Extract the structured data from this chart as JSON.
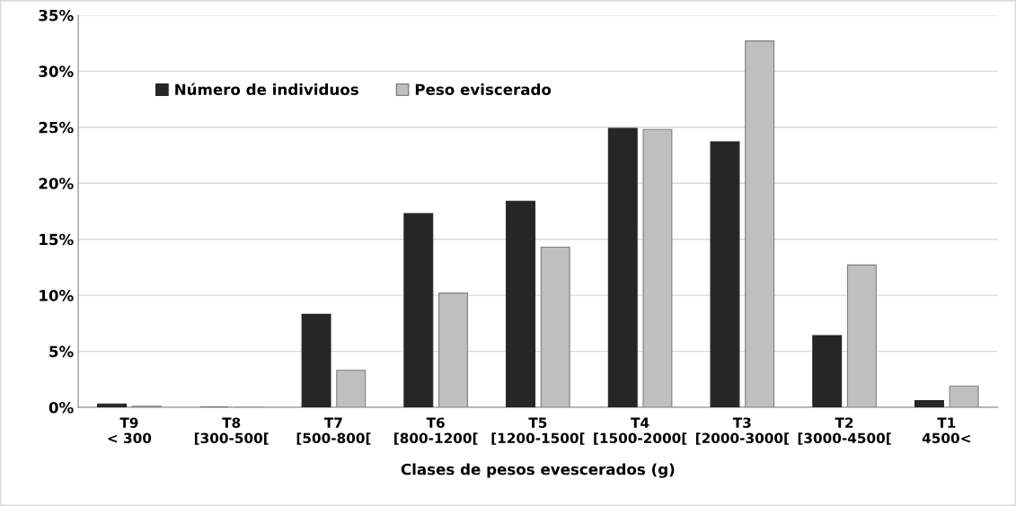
{
  "chart_data": {
    "type": "bar",
    "xlabel": "Clases de pesos evescerados (g)",
    "categories": [
      "T9\n< 300",
      "T8\n[300-500[",
      "T7\n[500-800[",
      "T6\n[800-1200[",
      "T5\n[1200-1500[",
      "T4\n[1500-2000[",
      "T3\n[2000-3000[",
      "T2\n[3000-4500[",
      "T1\n4500<"
    ],
    "series": [
      {
        "name": "Número de individuos",
        "color": "#262626",
        "values": [
          0.3,
          0,
          8.3,
          17.3,
          18.4,
          24.9,
          23.7,
          6.4,
          0.6
        ]
      },
      {
        "name": "Peso eviscerado",
        "color": "#bfbfbf",
        "values": [
          0.1,
          0,
          3.3,
          10.2,
          14.3,
          24.8,
          32.7,
          12.7,
          1.9
        ]
      }
    ],
    "ylim": [
      0,
      35
    ],
    "yticks": [
      {
        "value": 0,
        "label": "0%"
      },
      {
        "value": 5,
        "label": "5%"
      },
      {
        "value": 10,
        "label": "10%"
      },
      {
        "value": 15,
        "label": "15%"
      },
      {
        "value": 20,
        "label": "20%"
      },
      {
        "value": 25,
        "label": "25%"
      },
      {
        "value": 30,
        "label": "30%"
      },
      {
        "value": 35,
        "label": "35%"
      }
    ],
    "grid": "y",
    "legend": "top left"
  }
}
